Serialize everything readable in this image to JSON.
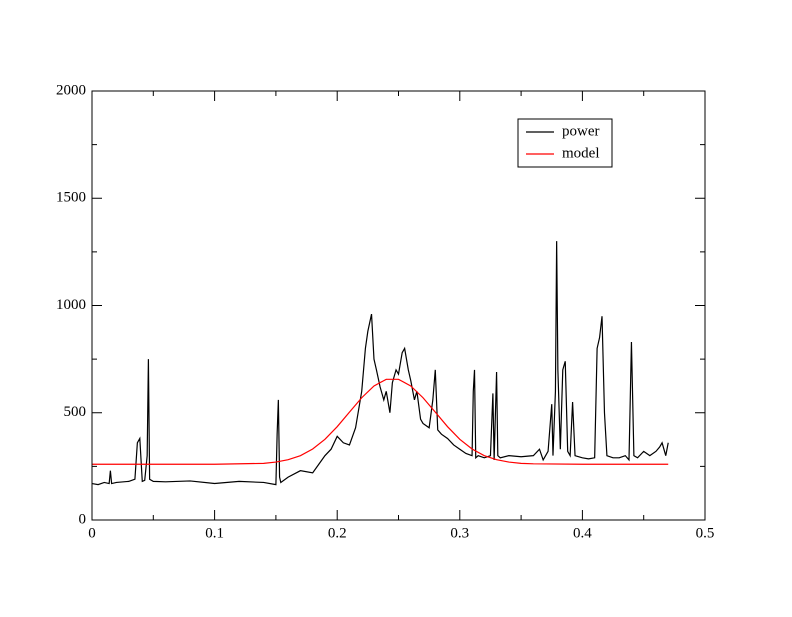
{
  "chart_data": {
    "type": "line",
    "xlim": [
      0,
      0.5
    ],
    "xticks": [
      0,
      0.1,
      0.2,
      0.3,
      0.4,
      0.5
    ],
    "xminorticks": [
      0.05,
      0.15,
      0.25,
      0.35,
      0.45
    ],
    "ylim": [
      0,
      2000
    ],
    "yticks": [
      0,
      500,
      1000,
      1500,
      2000
    ],
    "yminorticks": [
      250,
      750,
      1250,
      1750
    ],
    "legend": "upper right",
    "series": [
      {
        "name": "power",
        "color": "#000000",
        "x": [
          0,
          0.005,
          0.01,
          0.014,
          0.015,
          0.016,
          0.02,
          0.03,
          0.035,
          0.037,
          0.039,
          0.041,
          0.043,
          0.045,
          0.046,
          0.047,
          0.05,
          0.06,
          0.08,
          0.1,
          0.12,
          0.14,
          0.15,
          0.151,
          0.152,
          0.153,
          0.154,
          0.16,
          0.17,
          0.18,
          0.185,
          0.19,
          0.195,
          0.2,
          0.205,
          0.21,
          0.215,
          0.22,
          0.223,
          0.225,
          0.228,
          0.23,
          0.232,
          0.235,
          0.238,
          0.24,
          0.243,
          0.245,
          0.248,
          0.25,
          0.253,
          0.255,
          0.258,
          0.26,
          0.263,
          0.265,
          0.268,
          0.27,
          0.275,
          0.278,
          0.28,
          0.282,
          0.285,
          0.29,
          0.295,
          0.3,
          0.305,
          0.31,
          0.311,
          0.312,
          0.313,
          0.315,
          0.32,
          0.325,
          0.327,
          0.328,
          0.33,
          0.331,
          0.333,
          0.34,
          0.35,
          0.36,
          0.365,
          0.368,
          0.372,
          0.375,
          0.376,
          0.378,
          0.379,
          0.38,
          0.382,
          0.384,
          0.386,
          0.388,
          0.39,
          0.392,
          0.394,
          0.4,
          0.405,
          0.41,
          0.412,
          0.414,
          0.416,
          0.418,
          0.42,
          0.425,
          0.43,
          0.435,
          0.438,
          0.44,
          0.442,
          0.445,
          0.45,
          0.455,
          0.46,
          0.463,
          0.465,
          0.468,
          0.47
        ],
        "values": [
          170,
          165,
          175,
          170,
          230,
          170,
          175,
          180,
          190,
          360,
          380,
          180,
          185,
          300,
          750,
          190,
          180,
          178,
          182,
          170,
          180,
          175,
          165,
          400,
          560,
          200,
          175,
          200,
          230,
          220,
          260,
          300,
          330,
          390,
          360,
          350,
          430,
          600,
          800,
          880,
          960,
          750,
          700,
          620,
          560,
          600,
          500,
          640,
          700,
          680,
          780,
          800,
          700,
          650,
          560,
          600,
          470,
          450,
          430,
          560,
          700,
          420,
          400,
          380,
          350,
          330,
          310,
          300,
          600,
          700,
          290,
          300,
          290,
          300,
          590,
          280,
          690,
          300,
          290,
          300,
          295,
          300,
          330,
          280,
          320,
          540,
          300,
          600,
          1300,
          700,
          330,
          700,
          740,
          320,
          300,
          550,
          300,
          290,
          285,
          290,
          800,
          850,
          950,
          500,
          300,
          290,
          290,
          300,
          280,
          830,
          300,
          290,
          320,
          300,
          320,
          340,
          360,
          300,
          360
        ]
      },
      {
        "name": "model",
        "color": "#ff0000",
        "x": [
          0,
          0.05,
          0.1,
          0.14,
          0.15,
          0.16,
          0.17,
          0.18,
          0.19,
          0.2,
          0.21,
          0.22,
          0.23,
          0.24,
          0.25,
          0.26,
          0.27,
          0.28,
          0.29,
          0.3,
          0.31,
          0.32,
          0.33,
          0.34,
          0.35,
          0.36,
          0.4,
          0.47
        ],
        "values": [
          260,
          260,
          260,
          264,
          270,
          281,
          300,
          331,
          376,
          435,
          503,
          570,
          625,
          656,
          656,
          625,
          570,
          503,
          435,
          376,
          331,
          300,
          281,
          270,
          264,
          262,
          260,
          260
        ]
      }
    ]
  }
}
